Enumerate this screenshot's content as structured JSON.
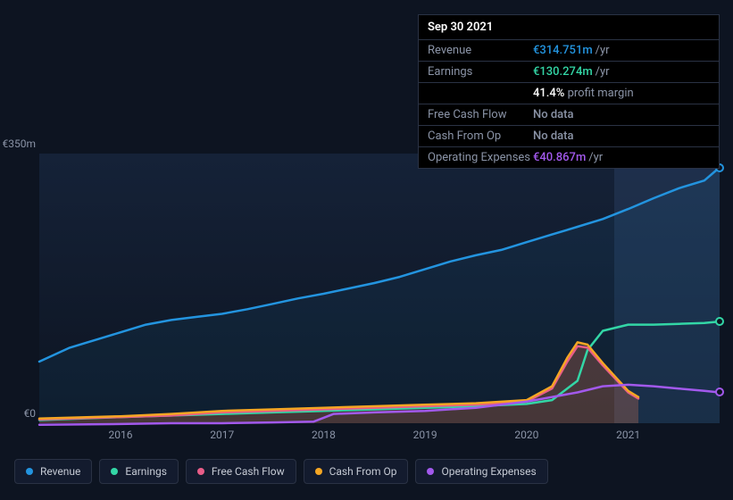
{
  "tooltip": {
    "date": "Sep 30 2021",
    "rows": [
      {
        "label": "Revenue",
        "value": "€314.751m",
        "unit": "/yr",
        "color": "#2394df"
      },
      {
        "label": "Earnings",
        "value": "€130.274m",
        "unit": "/yr",
        "color": "#33d6a6",
        "sub_pct": "41.4%",
        "sub_text": "profit margin"
      },
      {
        "label": "Free Cash Flow",
        "value": "No data",
        "unit": "",
        "color": "#8a93a6"
      },
      {
        "label": "Cash From Op",
        "value": "No data",
        "unit": "",
        "color": "#8a93a6"
      },
      {
        "label": "Operating Expenses",
        "value": "€40.867m",
        "unit": "/yr",
        "color": "#a259ec"
      }
    ]
  },
  "chart": {
    "type": "line",
    "background_color": "#0d1421",
    "grid_color": "#1a2438",
    "text_color": "#8a93a6",
    "xlim": [
      2015.2,
      2021.9
    ],
    "ylim": [
      0,
      350
    ],
    "y_ticks": [
      {
        "v": 0,
        "label": "€0"
      },
      {
        "v": 350,
        "label": "€350m"
      }
    ],
    "x_ticks": [
      2016,
      2017,
      2018,
      2019,
      2020,
      2021
    ],
    "cursor_x": 2021.25,
    "series": [
      {
        "name": "Revenue",
        "color": "#2394df",
        "line_width": 2.5,
        "fill_opacity": 0.08,
        "points": [
          [
            2015.2,
            80
          ],
          [
            2015.5,
            98
          ],
          [
            2015.75,
            108
          ],
          [
            2016,
            118
          ],
          [
            2016.25,
            128
          ],
          [
            2016.5,
            134
          ],
          [
            2016.75,
            138
          ],
          [
            2017,
            142
          ],
          [
            2017.25,
            148
          ],
          [
            2017.5,
            155
          ],
          [
            2017.75,
            162
          ],
          [
            2018,
            168
          ],
          [
            2018.25,
            175
          ],
          [
            2018.5,
            182
          ],
          [
            2018.75,
            190
          ],
          [
            2019,
            200
          ],
          [
            2019.25,
            210
          ],
          [
            2019.5,
            218
          ],
          [
            2019.75,
            225
          ],
          [
            2020,
            235
          ],
          [
            2020.25,
            245
          ],
          [
            2020.5,
            255
          ],
          [
            2020.75,
            265
          ],
          [
            2021,
            278
          ],
          [
            2021.25,
            292
          ],
          [
            2021.5,
            305
          ],
          [
            2021.75,
            315
          ],
          [
            2021.9,
            332
          ]
        ],
        "end_dot": true
      },
      {
        "name": "Earnings",
        "color": "#33d6a6",
        "line_width": 2.5,
        "fill_opacity": 0.0,
        "points": [
          [
            2015.2,
            4
          ],
          [
            2016,
            8
          ],
          [
            2016.5,
            10
          ],
          [
            2017,
            12
          ],
          [
            2017.5,
            14
          ],
          [
            2018,
            16
          ],
          [
            2018.5,
            18
          ],
          [
            2019,
            20
          ],
          [
            2019.5,
            22
          ],
          [
            2020,
            25
          ],
          [
            2020.25,
            30
          ],
          [
            2020.5,
            55
          ],
          [
            2020.6,
            95
          ],
          [
            2020.75,
            120
          ],
          [
            2021,
            128
          ],
          [
            2021.25,
            128
          ],
          [
            2021.5,
            129
          ],
          [
            2021.75,
            130
          ],
          [
            2021.9,
            132
          ]
        ],
        "end_dot": true
      },
      {
        "name": "Free Cash Flow",
        "color": "#e85d88",
        "line_width": 2.5,
        "fill_opacity": 0.15,
        "points": [
          [
            2015.2,
            5
          ],
          [
            2016,
            8
          ],
          [
            2016.5,
            10
          ],
          [
            2017,
            14
          ],
          [
            2017.5,
            16
          ],
          [
            2018,
            18
          ],
          [
            2018.5,
            20
          ],
          [
            2019,
            22
          ],
          [
            2019.5,
            24
          ],
          [
            2020,
            28
          ],
          [
            2020.25,
            45
          ],
          [
            2020.4,
            80
          ],
          [
            2020.5,
            100
          ],
          [
            2020.6,
            98
          ],
          [
            2020.75,
            75
          ],
          [
            2021,
            40
          ],
          [
            2021.1,
            32
          ]
        ],
        "end_dot": false
      },
      {
        "name": "Cash From Op",
        "color": "#f5a623",
        "line_width": 2.5,
        "fill_opacity": 0.12,
        "points": [
          [
            2015.2,
            6
          ],
          [
            2016,
            9
          ],
          [
            2016.5,
            12
          ],
          [
            2017,
            16
          ],
          [
            2017.5,
            18
          ],
          [
            2018,
            20
          ],
          [
            2018.5,
            22
          ],
          [
            2019,
            24
          ],
          [
            2019.5,
            26
          ],
          [
            2020,
            30
          ],
          [
            2020.25,
            48
          ],
          [
            2020.4,
            85
          ],
          [
            2020.5,
            105
          ],
          [
            2020.6,
            102
          ],
          [
            2020.75,
            78
          ],
          [
            2021,
            42
          ],
          [
            2021.1,
            34
          ]
        ],
        "end_dot": false
      },
      {
        "name": "Operating Expenses",
        "color": "#a259ec",
        "line_width": 2.5,
        "fill_opacity": 0.0,
        "points": [
          [
            2015.2,
            -2
          ],
          [
            2016,
            -1
          ],
          [
            2016.5,
            0
          ],
          [
            2017,
            0
          ],
          [
            2017.5,
            1
          ],
          [
            2017.9,
            2
          ],
          [
            2018.1,
            12
          ],
          [
            2018.5,
            14
          ],
          [
            2019,
            16
          ],
          [
            2019.5,
            20
          ],
          [
            2020,
            28
          ],
          [
            2020.5,
            40
          ],
          [
            2020.75,
            48
          ],
          [
            2021,
            50
          ],
          [
            2021.25,
            48
          ],
          [
            2021.5,
            45
          ],
          [
            2021.75,
            42
          ],
          [
            2021.9,
            40
          ]
        ],
        "end_dot": true
      }
    ]
  },
  "legend": [
    {
      "label": "Revenue",
      "color": "#2394df"
    },
    {
      "label": "Earnings",
      "color": "#33d6a6"
    },
    {
      "label": "Free Cash Flow",
      "color": "#e85d88"
    },
    {
      "label": "Cash From Op",
      "color": "#f5a623"
    },
    {
      "label": "Operating Expenses",
      "color": "#a259ec"
    }
  ]
}
